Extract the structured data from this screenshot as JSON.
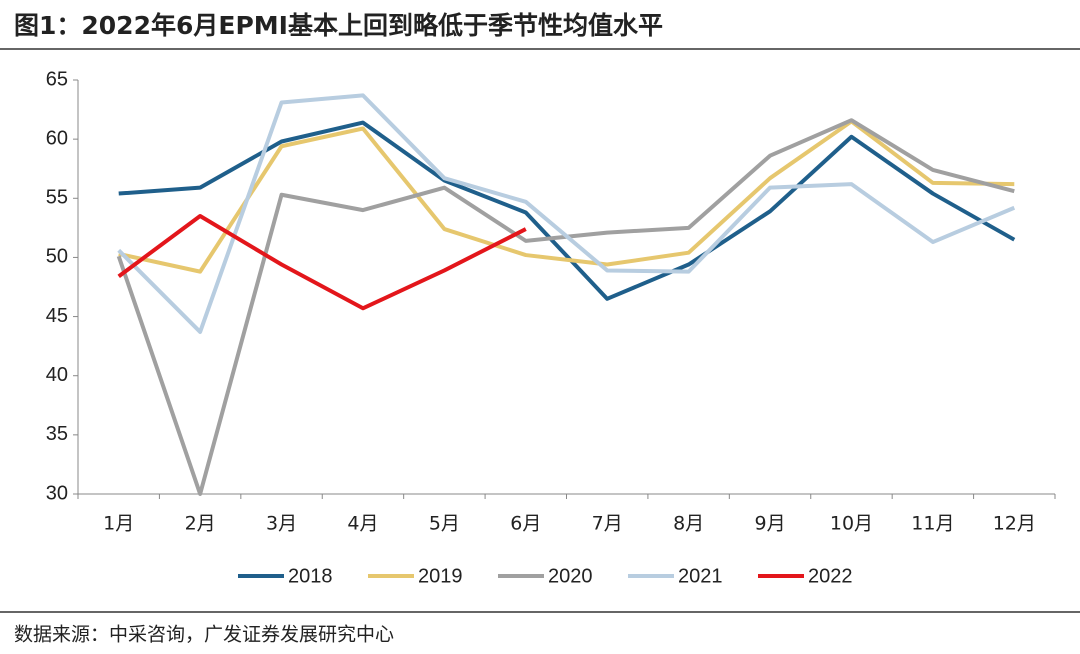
{
  "title": "图1：2022年6月EPMI基本上回到略低于季节性均值水平",
  "source": "数据来源：中采咨询，广发证券发展研究中心",
  "chart_data": {
    "type": "line",
    "categories": [
      "1月",
      "2月",
      "3月",
      "4月",
      "5月",
      "6月",
      "7月",
      "8月",
      "9月",
      "10月",
      "11月",
      "12月"
    ],
    "ylim": [
      30,
      65
    ],
    "yticks": [
      30,
      35,
      40,
      45,
      50,
      55,
      60,
      65
    ],
    "series": [
      {
        "name": "2018",
        "color": "#1f5f8b",
        "values": [
          55.4,
          55.9,
          59.8,
          61.4,
          56.5,
          53.8,
          46.5,
          49.4,
          53.9,
          60.2,
          55.4,
          51.5
        ]
      },
      {
        "name": "2019",
        "color": "#e6c76e",
        "values": [
          50.3,
          48.8,
          59.4,
          60.9,
          52.4,
          50.2,
          49.4,
          50.4,
          56.7,
          61.5,
          56.3,
          56.2
        ]
      },
      {
        "name": "2020",
        "color": "#a0a0a0",
        "values": [
          50.1,
          30.0,
          55.3,
          54.0,
          55.9,
          51.4,
          52.1,
          52.5,
          58.6,
          61.6,
          57.4,
          55.6
        ]
      },
      {
        "name": "2021",
        "color": "#b8cde0",
        "values": [
          50.6,
          43.7,
          63.1,
          63.7,
          56.7,
          54.7,
          48.9,
          48.8,
          55.9,
          56.2,
          51.3,
          54.2
        ]
      },
      {
        "name": "2022",
        "color": "#e3161b",
        "values": [
          48.4,
          53.5,
          49.4,
          45.7,
          48.9,
          52.4,
          null,
          null,
          null,
          null,
          null,
          null
        ]
      }
    ]
  }
}
